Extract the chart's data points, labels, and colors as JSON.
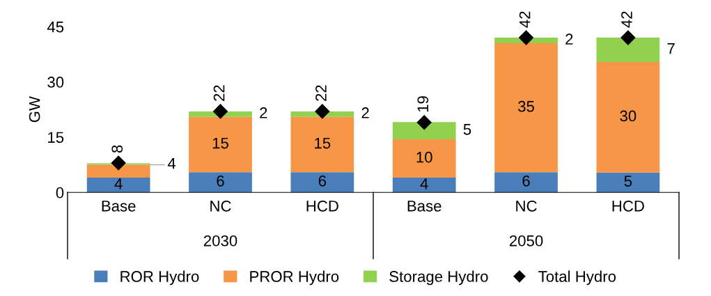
{
  "chart_data": {
    "type": "bar",
    "stacked": true,
    "ylabel": "GW",
    "categories": [
      "Base",
      "NC",
      "HCD",
      "Base",
      "NC",
      "HCD"
    ],
    "annotations": [
      "2030",
      "2050"
    ],
    "series": [
      {
        "name": "ROR Hydro",
        "color": "#4a7ebb",
        "values": [
          4,
          5.5,
          5.5,
          4,
          5.5,
          5.4
        ],
        "value_labels": [
          "4",
          "6",
          "6",
          "4",
          "6",
          "5"
        ]
      },
      {
        "name": "PROR Hydro",
        "color": "#f79646",
        "values": [
          3.5,
          15,
          15,
          10.4,
          35,
          30
        ],
        "value_labels": [
          "4",
          "15",
          "15",
          "10",
          "35",
          "30"
        ]
      },
      {
        "name": "Storage Hydro",
        "color": "#92d050",
        "values": [
          0.4,
          1.5,
          1.5,
          4.7,
          1.5,
          6.6
        ],
        "value_labels": [
          null,
          "2",
          "2",
          "5",
          "2",
          "7"
        ]
      },
      {
        "name": "Total Hydro",
        "type": "scatter",
        "color": "#000000",
        "marker": "diamond",
        "values": [
          8,
          22,
          22,
          19,
          42,
          42
        ],
        "value_labels": [
          "8",
          "22",
          "22",
          "19",
          "42",
          "42"
        ]
      }
    ],
    "ylim": [
      0,
      45
    ],
    "yticks": [
      0,
      15,
      30,
      45
    ],
    "grid": false,
    "legend": "bottom"
  }
}
